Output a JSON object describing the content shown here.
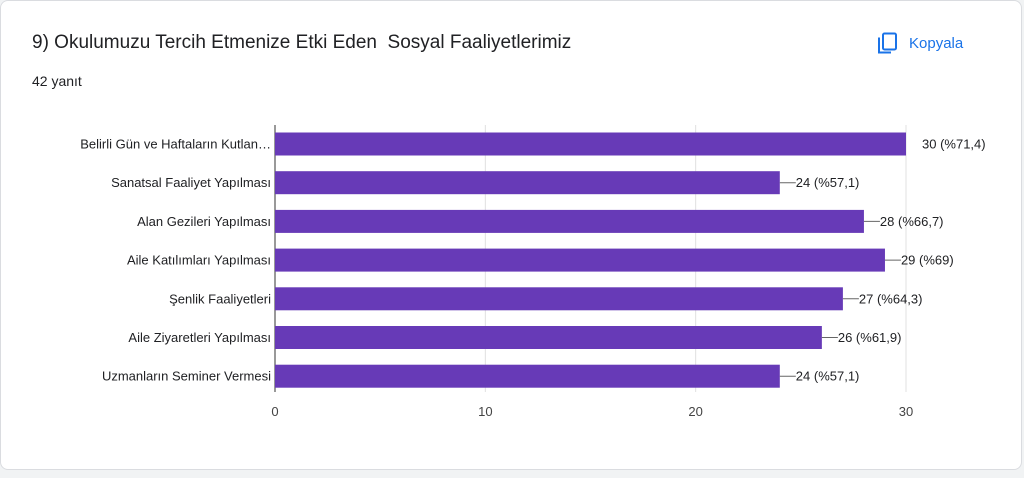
{
  "header": {
    "title": "9) Okulumuzu Tercih Etmenize Etki Eden  Sosyal Faaliyetlerimiz",
    "response_count": "42 yanıt",
    "copy_label": "Kopyala",
    "copy_icon": "copy-icon"
  },
  "colors": {
    "bar": "#673ab7",
    "accent": "#1a73e8"
  },
  "chart_data": {
    "type": "bar",
    "orientation": "horizontal",
    "categories": [
      "Belirli Gün ve Haftaların Kutlan…",
      "Sanatsal Faaliyet Yapılması",
      "Alan Gezileri Yapılması",
      "Aile Katılımları Yapılması",
      "Şenlik Faaliyetleri",
      "Aile Ziyaretleri Yapılması",
      "Uzmanların Seminer Vermesi"
    ],
    "values": [
      30,
      24,
      28,
      29,
      27,
      26,
      24
    ],
    "data_labels": [
      "30 (%71,4)",
      "24 (%57,1)",
      "28 (%66,7)",
      "29 (%69)",
      "27 (%64,3)",
      "26 (%61,9)",
      "24 (%57,1)"
    ],
    "xticks": [
      "0",
      "10",
      "20",
      "30"
    ],
    "xlim": [
      0,
      30
    ],
    "grid": true,
    "legend": "none"
  }
}
